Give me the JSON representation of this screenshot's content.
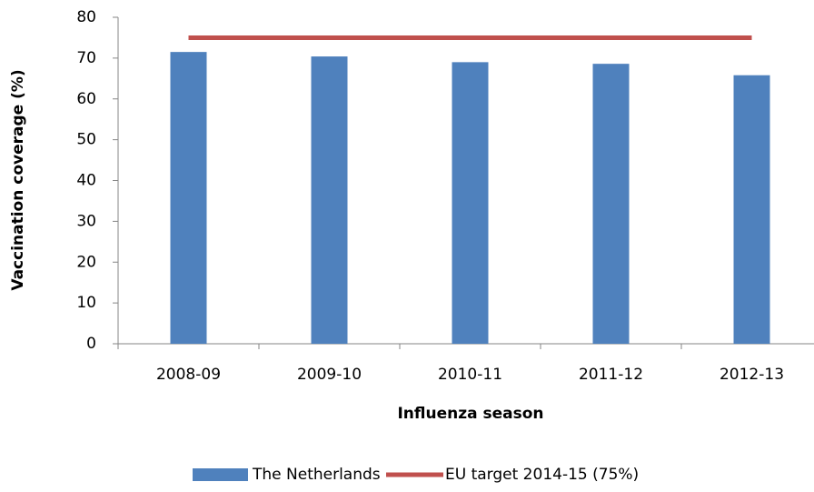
{
  "chart_data": {
    "type": "bar",
    "x_label": "Influenza season",
    "y_label": "Vaccination coverage (%)",
    "categories": [
      "2008-09",
      "2009-10",
      "2010-11",
      "2011-12",
      "2012-13"
    ],
    "series": [
      {
        "name": "The Netherlands",
        "color": "#4f81bd",
        "values": [
          71.5,
          70.4,
          69.0,
          68.6,
          65.8
        ]
      },
      {
        "name": "EU target 2014-15 (75%)",
        "color": "#c0504d",
        "type": "line",
        "values": [
          75,
          75,
          75,
          75,
          75
        ]
      }
    ],
    "ylim": [
      0,
      80
    ],
    "yticks": [
      0,
      10,
      20,
      30,
      40,
      50,
      60,
      70,
      80
    ],
    "grid": false,
    "legend": "bottom"
  }
}
